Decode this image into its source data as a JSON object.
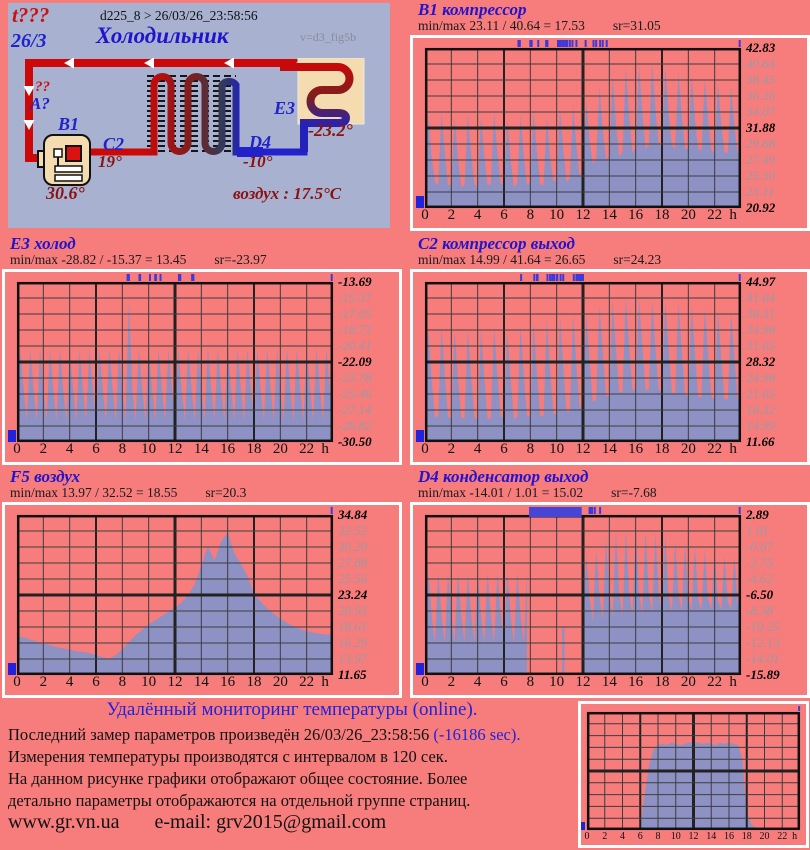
{
  "header": {
    "t_unknown": "t???",
    "date_short": "26/3",
    "device_line": "d225_8  >  26/03/26_23:58:56",
    "title": "Холодильник",
    "version": "v=d3_fig5b"
  },
  "diagram": {
    "q_red": "??",
    "q_blue": "A?",
    "b1_label": "B1",
    "b1_temp": "30.6°",
    "c2_label": "C2",
    "c2_temp": "19°",
    "d4_label": "D4",
    "d4_temp": "-10°",
    "e3_label": "E3",
    "e3_temp": "-23.2°",
    "air_temp": "воздух : 17.5°C"
  },
  "footer": {
    "heading": "Удалённый мониторинг температуры (online).",
    "line1_pre": "Последний замер параметров произведён",
    "line1_time": "26/03/26_23:58:56",
    "line1_delay": "(-16186 sec).",
    "line2": "Измерения температуры  производятся с интервалом в 120 сек.",
    "line3": "На данном рисунке графики отображают общее состояние. Более",
    "line4": "детально параметры отображаются на отдельной группе страниц.",
    "site": "www.gr.vn.ua",
    "email": "e-mail: grv2015@gmail.com"
  },
  "colors": {
    "background": "#f77c7c",
    "panel": "#a8b2d0",
    "series_fill": "#8e91c4",
    "accent_blue": "#2222dd",
    "dark_red": "#8b1212"
  },
  "chart_data": [
    {
      "id": "b1",
      "type": "area",
      "title": "B1 компрессор",
      "minmax_text": "min/max   23.11 / 40.64 = 17.53",
      "sr_text": "sr=31.05",
      "y_labels": [
        "42.83",
        "40.64",
        "38.45",
        "36.26",
        "34.07",
        "31.88",
        "29.68",
        "27.49",
        "25.30",
        "23.11",
        "20.92"
      ],
      "ylim": [
        20.92,
        42.83
      ],
      "x_labels": [
        "0",
        "2",
        "4",
        "6",
        "8",
        "10",
        "12",
        "14",
        "16",
        "18",
        "20",
        "22"
      ],
      "x_unit": "h",
      "step_h": 0.25,
      "event_ticks_h": [
        7.1,
        7.2,
        8.0,
        8.1,
        8.6,
        9.2,
        9.3,
        10.1,
        10.2,
        10.3,
        10.45,
        10.55,
        10.7,
        10.8,
        11.0,
        11.2,
        11.5,
        12.2,
        12.8,
        13.0,
        13.3,
        13.5,
        13.8,
        23.9
      ],
      "values": [
        24.0,
        33.5,
        28.0,
        24.5,
        24.0,
        34.0,
        28.5,
        24.0,
        24.2,
        33.2,
        27.8,
        23.8,
        24.0,
        33.8,
        28.2,
        24.2,
        23.8,
        33.5,
        28.0,
        24.0,
        24.2,
        34.0,
        28.5,
        24.3,
        24.0,
        33.0,
        27.5,
        23.8,
        24.2,
        33.6,
        28.0,
        24.0,
        24.5,
        34.2,
        28.5,
        24.2,
        24.0,
        33.4,
        27.8,
        24.5,
        24.8,
        34.5,
        29.0,
        24.5,
        25.0,
        34.8,
        29.5,
        25.0,
        26.5,
        35.5,
        30.0,
        27.0,
        27.5,
        37.5,
        31.5,
        27.5,
        28.0,
        39.0,
        32.5,
        28.0,
        28.5,
        40.0,
        33.5,
        28.5,
        29.0,
        40.5,
        34.0,
        29.0,
        29.5,
        40.6,
        34.5,
        29.5,
        29.5,
        40.2,
        34.0,
        29.5,
        29.0,
        39.5,
        33.5,
        29.0,
        29.0,
        39.0,
        33.0,
        29.0,
        28.8,
        38.5,
        33.0,
        28.8,
        28.5,
        38.0,
        32.5,
        28.5,
        28.5,
        37.5,
        32.0,
        28.5,
        28.5
      ]
    },
    {
      "id": "e3",
      "type": "area",
      "title": "E3 холод",
      "minmax_text": "min/max   -28.82 / -15.37 = 13.45",
      "sr_text": "sr=-23.97",
      "y_labels": [
        "-13.69",
        "-15.37",
        "-17.05",
        "-18.73",
        "-20.41",
        "-22.09",
        "-23.78",
        "-25.46",
        "-27.14",
        "-28.82",
        "-30.50"
      ],
      "ylim": [
        -30.5,
        -13.69
      ],
      "x_labels": [
        "0",
        "2",
        "4",
        "6",
        "8",
        "10",
        "12",
        "14",
        "16",
        "18",
        "20",
        "22"
      ],
      "x_unit": "h",
      "step_h": 0.25,
      "event_ticks_h": [
        8.4,
        8.5,
        9.3,
        9.35,
        10.1,
        10.5,
        10.55,
        10.9,
        12.3,
        12.35,
        12.4,
        13.3,
        13.35,
        13.4,
        23.9
      ],
      "values": [
        -28.3,
        -20.7,
        -24.8,
        -28.3,
        -20.7,
        -24.8,
        -28.3,
        -20.7,
        -24.8,
        -28.3,
        -20.7,
        -24.8,
        -28.3,
        -20.7,
        -24.8,
        -28.3,
        -20.7,
        -24.8,
        -28.3,
        -20.7,
        -24.8,
        -28.3,
        -20.7,
        -24.8,
        -28.3,
        -20.7,
        -24.8,
        -28.3,
        -20.7,
        -24.8,
        -28.3,
        -20.7,
        -24.8,
        -28.3,
        -15.6,
        -24.8,
        -28.3,
        -20.7,
        -24.8,
        -28.3,
        -20.7,
        -24.8,
        -28.3,
        -20.7,
        -24.8,
        -28.3,
        -20.7,
        -24.8,
        -28.3,
        -20.7,
        -24.8,
        -28.3,
        -20.7,
        -24.8,
        -28.3,
        -20.7,
        -24.8,
        -28.3,
        -20.7,
        -24.8,
        -28.3,
        -20.7,
        -24.8,
        -28.3,
        -20.7,
        -24.8,
        -28.3,
        -20.7,
        -24.8,
        -28.3,
        -20.7,
        -24.8,
        -28.3,
        -20.7,
        -24.8,
        -28.3,
        -20.7,
        -24.8,
        -28.3,
        -20.7,
        -24.8,
        -28.3,
        -20.7,
        -24.8,
        -28.3,
        -20.7,
        -24.8,
        -28.3,
        -20.7,
        -24.8,
        -28.3,
        -20.7,
        -24.8,
        -28.3,
        -20.7,
        -24.8,
        -28.3
      ]
    },
    {
      "id": "c2",
      "type": "area",
      "title": "C2 компрессор выход",
      "minmax_text": "min/max   14.99 / 41.64 = 26.65",
      "sr_text": "sr=24.23",
      "y_labels": [
        "44.97",
        "41.64",
        "38.31",
        "34.98",
        "31.65",
        "28.32",
        "24.98",
        "21.65",
        "18.32",
        "14.99",
        "11.66"
      ],
      "ylim": [
        11.66,
        44.97
      ],
      "x_labels": [
        "0",
        "2",
        "4",
        "6",
        "8",
        "10",
        "12",
        "14",
        "16",
        "18",
        "20",
        "22"
      ],
      "x_unit": "h",
      "step_h": 0.25,
      "event_ticks_h": [
        7.3,
        8.3,
        8.5,
        8.55,
        9.3,
        9.5,
        9.55,
        9.7,
        9.8,
        10.0,
        10.05,
        10.3,
        10.5,
        11.3,
        11.5,
        11.55,
        11.7,
        11.8,
        11.9,
        12.0,
        23.9
      ],
      "values": [
        16.5,
        35.0,
        25.0,
        17.0,
        16.8,
        35.5,
        25.5,
        17.0,
        16.5,
        34.8,
        25.0,
        16.8,
        16.5,
        35.2,
        25.2,
        16.8,
        16.3,
        35.0,
        25.0,
        16.5,
        16.5,
        35.5,
        25.5,
        17.0,
        16.5,
        34.5,
        24.8,
        16.5,
        16.8,
        35.8,
        25.5,
        17.0,
        17.0,
        36.5,
        26.0,
        17.2,
        17.0,
        37.0,
        26.5,
        17.5,
        17.5,
        37.8,
        27.0,
        18.0,
        18.0,
        38.0,
        27.5,
        18.5,
        19.5,
        38.5,
        28.5,
        20.0,
        20.5,
        40.0,
        30.0,
        21.0,
        21.5,
        41.0,
        31.0,
        22.0,
        22.0,
        41.6,
        31.5,
        22.5,
        22.5,
        41.5,
        31.5,
        22.5,
        22.5,
        41.3,
        31.0,
        22.5,
        22.0,
        41.0,
        31.0,
        22.0,
        21.5,
        40.5,
        30.5,
        21.5,
        21.0,
        40.0,
        30.0,
        21.0,
        21.0,
        39.5,
        29.5,
        21.0,
        20.5,
        39.0,
        29.0,
        20.5,
        20.5,
        38.5,
        29.0,
        20.5,
        20.5
      ]
    },
    {
      "id": "f5",
      "type": "area",
      "title": "F5 воздух",
      "minmax_text": "min/max   13.97 / 32.52 = 18.55",
      "sr_text": "sr=20.3",
      "y_labels": [
        "34.84",
        "32.52",
        "30.20",
        "27.88",
        "25.56",
        "23.24",
        "20.93",
        "18.61",
        "16.29",
        "13.97",
        "11.65"
      ],
      "ylim": [
        11.65,
        34.84
      ],
      "x_labels": [
        "0",
        "2",
        "4",
        "6",
        "8",
        "10",
        "12",
        "14",
        "16",
        "18",
        "20",
        "22"
      ],
      "x_unit": "h",
      "step_h": 0.5,
      "event_ticks_h": [
        23.9
      ],
      "values": [
        17.3,
        17.1,
        16.8,
        16.5,
        16.2,
        16.0,
        15.7,
        15.5,
        15.3,
        15.1,
        15.0,
        14.8,
        14.6,
        14.2,
        14.0,
        14.5,
        15.4,
        16.4,
        17.4,
        18.2,
        19.0,
        19.6,
        20.2,
        20.8,
        21.4,
        22.2,
        23.2,
        24.8,
        27.5,
        30.3,
        28.2,
        31.0,
        32.3,
        29.3,
        27.8,
        26.0,
        23.3,
        22.3,
        21.3,
        20.5,
        19.8,
        19.2,
        18.7,
        18.3,
        18.0,
        17.8,
        17.6,
        17.5,
        17.5
      ]
    },
    {
      "id": "d4",
      "type": "area",
      "title": "D4 конденсатор выход",
      "minmax_text": "min/max   -14.01 / 1.01 = 15.02",
      "sr_text": "sr=-7.68",
      "y_labels": [
        "2.89",
        "1.01",
        "-0.87",
        "-2.75",
        "-4.62",
        "-6.50",
        "-8.38",
        "-10.25",
        "-12.13",
        "-14.01",
        "-15.89"
      ],
      "ylim": [
        -15.89,
        2.89
      ],
      "x_labels": [
        "0",
        "2",
        "4",
        "6",
        "8",
        "10",
        "12",
        "14",
        "16",
        "18",
        "20",
        "22"
      ],
      "x_unit": "h",
      "step_h": 0.25,
      "event_ticks_h": [
        12.5,
        12.55,
        12.6,
        12.7,
        12.9,
        13.3,
        23.9
      ],
      "gap_bar_h": [
        7.9,
        11.9
      ],
      "values": [
        -12.2,
        -3.8,
        -8.8,
        -12.2,
        -3.8,
        -8.8,
        -12.2,
        -3.8,
        -8.8,
        -12.2,
        -3.8,
        -8.8,
        -12.2,
        -3.8,
        -8.8,
        -12.2,
        -3.8,
        -8.8,
        -12.2,
        -3.8,
        -8.8,
        -12.2,
        -3.8,
        -8.8,
        -12.2,
        -3.8,
        -8.8,
        -12.2,
        -3.8,
        -8.8,
        -12.2,
        -3.9,
        null,
        null,
        null,
        null,
        null,
        null,
        null,
        null,
        null,
        null,
        -10.2,
        null,
        null,
        null,
        null,
        null,
        -9.8,
        -1.8,
        -6.8,
        -9.6,
        -1.2,
        -6.6,
        -9.4,
        0.2,
        -6.4,
        -9.2,
        0.8,
        -6.3,
        -9.0,
        1.0,
        -6.2,
        -8.8,
        0.9,
        -6.2,
        -8.8,
        1.0,
        -6.3,
        -8.6,
        0.8,
        -6.4,
        -8.6,
        0.5,
        -6.5,
        -8.5,
        -0.2,
        -6.6,
        -8.4,
        -0.5,
        -6.8,
        -8.3,
        -0.8,
        -7.0,
        -8.3,
        -1.2,
        -7.0,
        -8.2,
        -1.5,
        -7.2,
        -8.2,
        -1.8,
        -7.3,
        -8.1,
        -2.0,
        -7.3,
        -8.0
      ]
    },
    {
      "id": "mini",
      "type": "area",
      "title": "",
      "minmax_text": "",
      "sr_text": "",
      "y_labels": [],
      "ylim": [
        0,
        1
      ],
      "x_labels": [
        "0",
        "2",
        "4",
        "6",
        "8",
        "10",
        "12",
        "14",
        "16",
        "18",
        "20",
        "22"
      ],
      "x_unit": "h",
      "step_h": 0.5,
      "event_ticks_h": [
        23.9
      ],
      "values": [
        0,
        0,
        0,
        0,
        0,
        0,
        0,
        0,
        0,
        0,
        0,
        0,
        0.02,
        0.3,
        0.55,
        0.68,
        0.72,
        0.73,
        0.72,
        0.74,
        0.73,
        0.72,
        0.73,
        0.74,
        0.75,
        0.74,
        0.73,
        0.74,
        0.73,
        0.72,
        0.74,
        0.73,
        0.74,
        0.73,
        0.72,
        0.6,
        0.15,
        0.05,
        0.02,
        0,
        0,
        0,
        0,
        0,
        0,
        0,
        0,
        0,
        0
      ]
    }
  ]
}
